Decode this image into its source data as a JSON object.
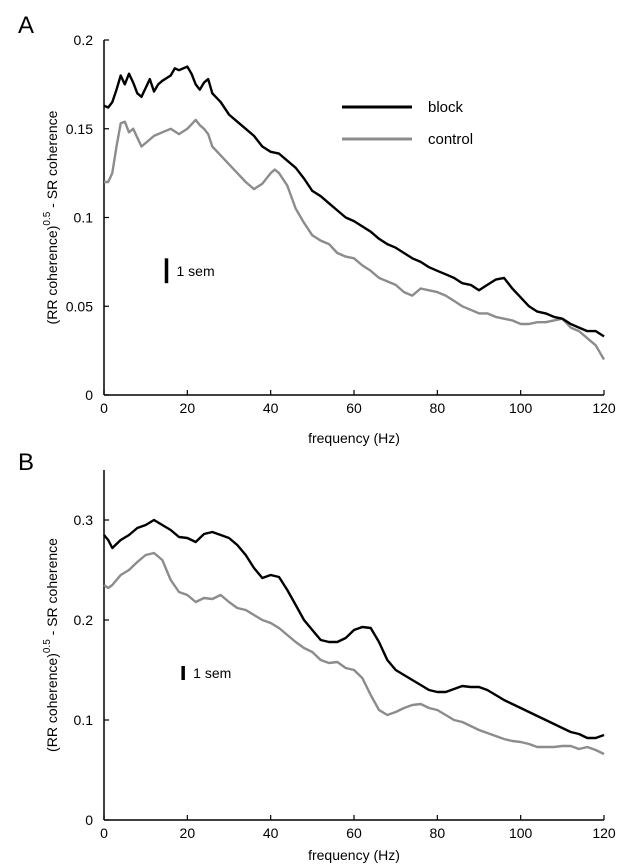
{
  "chart_data": [
    {
      "panel_label": "A",
      "type": "line",
      "xlabel": "frequency (Hz)",
      "ylabel_main": "(RR coherence)",
      "ylabel_sup": "0.5",
      "ylabel_tail": " - SR coherence",
      "xlim": [
        0,
        120
      ],
      "ylim": [
        0,
        0.2
      ],
      "x_ticks": [
        0,
        20,
        40,
        60,
        80,
        100,
        120
      ],
      "y_ticks": [
        0,
        0.05,
        0.1,
        0.15,
        0.2
      ],
      "y_tick_labels": [
        "0",
        "0.05",
        "0.1",
        "0.15",
        "0.2"
      ],
      "legend_position": "top-right",
      "scale_bar": {
        "label": "1 sem",
        "x": 15,
        "y_low": 0.063,
        "y_high": 0.077
      },
      "series": [
        {
          "name": "block",
          "color": "#000000",
          "points": [
            [
              0,
              0.163
            ],
            [
              1,
              0.162
            ],
            [
              2,
              0.165
            ],
            [
              3,
              0.172
            ],
            [
              4,
              0.18
            ],
            [
              5,
              0.175
            ],
            [
              6,
              0.181
            ],
            [
              7,
              0.176
            ],
            [
              8,
              0.17
            ],
            [
              9,
              0.168
            ],
            [
              10,
              0.173
            ],
            [
              11,
              0.178
            ],
            [
              12,
              0.171
            ],
            [
              13,
              0.175
            ],
            [
              14,
              0.177
            ],
            [
              16,
              0.18
            ],
            [
              17,
              0.184
            ],
            [
              18,
              0.183
            ],
            [
              20,
              0.185
            ],
            [
              21,
              0.181
            ],
            [
              22,
              0.175
            ],
            [
              23,
              0.172
            ],
            [
              24,
              0.176
            ],
            [
              25,
              0.178
            ],
            [
              26,
              0.17
            ],
            [
              28,
              0.165
            ],
            [
              30,
              0.158
            ],
            [
              32,
              0.154
            ],
            [
              34,
              0.15
            ],
            [
              36,
              0.146
            ],
            [
              38,
              0.14
            ],
            [
              40,
              0.137
            ],
            [
              42,
              0.136
            ],
            [
              44,
              0.132
            ],
            [
              46,
              0.128
            ],
            [
              48,
              0.122
            ],
            [
              50,
              0.115
            ],
            [
              52,
              0.112
            ],
            [
              54,
              0.108
            ],
            [
              56,
              0.104
            ],
            [
              58,
              0.1
            ],
            [
              60,
              0.098
            ],
            [
              62,
              0.095
            ],
            [
              64,
              0.092
            ],
            [
              66,
              0.088
            ],
            [
              68,
              0.085
            ],
            [
              70,
              0.083
            ],
            [
              72,
              0.08
            ],
            [
              74,
              0.077
            ],
            [
              76,
              0.075
            ],
            [
              78,
              0.072
            ],
            [
              80,
              0.07
            ],
            [
              82,
              0.068
            ],
            [
              84,
              0.066
            ],
            [
              86,
              0.063
            ],
            [
              88,
              0.062
            ],
            [
              90,
              0.059
            ],
            [
              92,
              0.062
            ],
            [
              94,
              0.065
            ],
            [
              96,
              0.066
            ],
            [
              98,
              0.06
            ],
            [
              100,
              0.055
            ],
            [
              102,
              0.05
            ],
            [
              104,
              0.047
            ],
            [
              106,
              0.046
            ],
            [
              108,
              0.044
            ],
            [
              110,
              0.043
            ],
            [
              112,
              0.04
            ],
            [
              114,
              0.038
            ],
            [
              116,
              0.036
            ],
            [
              118,
              0.036
            ],
            [
              120,
              0.033
            ]
          ]
        },
        {
          "name": "control",
          "color": "#8c8c8c",
          "points": [
            [
              0,
              0.12
            ],
            [
              1,
              0.12
            ],
            [
              2,
              0.125
            ],
            [
              3,
              0.14
            ],
            [
              4,
              0.153
            ],
            [
              5,
              0.154
            ],
            [
              6,
              0.148
            ],
            [
              7,
              0.15
            ],
            [
              8,
              0.145
            ],
            [
              9,
              0.14
            ],
            [
              10,
              0.142
            ],
            [
              12,
              0.146
            ],
            [
              14,
              0.148
            ],
            [
              16,
              0.15
            ],
            [
              18,
              0.147
            ],
            [
              20,
              0.15
            ],
            [
              22,
              0.155
            ],
            [
              23,
              0.152
            ],
            [
              24,
              0.15
            ],
            [
              25,
              0.147
            ],
            [
              26,
              0.14
            ],
            [
              28,
              0.135
            ],
            [
              30,
              0.13
            ],
            [
              32,
              0.125
            ],
            [
              34,
              0.12
            ],
            [
              36,
              0.116
            ],
            [
              38,
              0.119
            ],
            [
              40,
              0.125
            ],
            [
              41,
              0.127
            ],
            [
              42,
              0.125
            ],
            [
              44,
              0.118
            ],
            [
              46,
              0.105
            ],
            [
              48,
              0.097
            ],
            [
              50,
              0.09
            ],
            [
              52,
              0.087
            ],
            [
              54,
              0.085
            ],
            [
              56,
              0.08
            ],
            [
              58,
              0.078
            ],
            [
              60,
              0.077
            ],
            [
              62,
              0.073
            ],
            [
              64,
              0.07
            ],
            [
              66,
              0.066
            ],
            [
              68,
              0.064
            ],
            [
              70,
              0.062
            ],
            [
              72,
              0.058
            ],
            [
              74,
              0.056
            ],
            [
              76,
              0.06
            ],
            [
              78,
              0.059
            ],
            [
              80,
              0.058
            ],
            [
              82,
              0.056
            ],
            [
              84,
              0.053
            ],
            [
              86,
              0.05
            ],
            [
              88,
              0.048
            ],
            [
              90,
              0.046
            ],
            [
              92,
              0.046
            ],
            [
              94,
              0.044
            ],
            [
              96,
              0.043
            ],
            [
              98,
              0.042
            ],
            [
              100,
              0.04
            ],
            [
              102,
              0.04
            ],
            [
              104,
              0.041
            ],
            [
              106,
              0.041
            ],
            [
              108,
              0.042
            ],
            [
              110,
              0.043
            ],
            [
              112,
              0.038
            ],
            [
              114,
              0.036
            ],
            [
              116,
              0.032
            ],
            [
              118,
              0.028
            ],
            [
              120,
              0.02
            ]
          ]
        }
      ]
    },
    {
      "panel_label": "B",
      "type": "line",
      "xlabel": "frequency (Hz)",
      "ylabel_main": "(RR coherence)",
      "ylabel_sup": "0.5",
      "ylabel_tail": " - SR coherence",
      "xlim": [
        0,
        120
      ],
      "ylim": [
        0,
        0.35
      ],
      "x_ticks": [
        0,
        20,
        40,
        60,
        80,
        100,
        120
      ],
      "y_ticks": [
        0,
        0.1,
        0.2,
        0.3
      ],
      "y_tick_labels": [
        "0",
        "0.1",
        "0.2",
        "0.3"
      ],
      "scale_bar": {
        "label": "1 sem",
        "x": 19,
        "y_low": 0.14,
        "y_high": 0.154
      },
      "series": [
        {
          "name": "block",
          "color": "#000000",
          "points": [
            [
              0,
              0.285
            ],
            [
              1,
              0.28
            ],
            [
              2,
              0.272
            ],
            [
              4,
              0.28
            ],
            [
              6,
              0.285
            ],
            [
              8,
              0.292
            ],
            [
              10,
              0.295
            ],
            [
              12,
              0.3
            ],
            [
              14,
              0.295
            ],
            [
              16,
              0.29
            ],
            [
              18,
              0.283
            ],
            [
              20,
              0.282
            ],
            [
              22,
              0.278
            ],
            [
              24,
              0.286
            ],
            [
              26,
              0.288
            ],
            [
              28,
              0.285
            ],
            [
              30,
              0.282
            ],
            [
              32,
              0.275
            ],
            [
              34,
              0.265
            ],
            [
              36,
              0.252
            ],
            [
              38,
              0.242
            ],
            [
              40,
              0.245
            ],
            [
              42,
              0.243
            ],
            [
              44,
              0.23
            ],
            [
              46,
              0.215
            ],
            [
              48,
              0.2
            ],
            [
              50,
              0.19
            ],
            [
              52,
              0.18
            ],
            [
              54,
              0.178
            ],
            [
              56,
              0.178
            ],
            [
              58,
              0.182
            ],
            [
              60,
              0.19
            ],
            [
              62,
              0.193
            ],
            [
              64,
              0.192
            ],
            [
              66,
              0.178
            ],
            [
              68,
              0.16
            ],
            [
              70,
              0.15
            ],
            [
              72,
              0.145
            ],
            [
              74,
              0.14
            ],
            [
              76,
              0.135
            ],
            [
              78,
              0.13
            ],
            [
              80,
              0.128
            ],
            [
              82,
              0.128
            ],
            [
              84,
              0.131
            ],
            [
              86,
              0.134
            ],
            [
              88,
              0.133
            ],
            [
              90,
              0.133
            ],
            [
              92,
              0.13
            ],
            [
              94,
              0.125
            ],
            [
              96,
              0.12
            ],
            [
              98,
              0.116
            ],
            [
              100,
              0.112
            ],
            [
              102,
              0.108
            ],
            [
              104,
              0.104
            ],
            [
              106,
              0.1
            ],
            [
              108,
              0.096
            ],
            [
              110,
              0.092
            ],
            [
              112,
              0.088
            ],
            [
              114,
              0.086
            ],
            [
              116,
              0.082
            ],
            [
              118,
              0.082
            ],
            [
              120,
              0.085
            ]
          ]
        },
        {
          "name": "control",
          "color": "#8c8c8c",
          "points": [
            [
              0,
              0.235
            ],
            [
              1,
              0.232
            ],
            [
              2,
              0.235
            ],
            [
              4,
              0.245
            ],
            [
              6,
              0.25
            ],
            [
              8,
              0.258
            ],
            [
              10,
              0.265
            ],
            [
              12,
              0.267
            ],
            [
              14,
              0.26
            ],
            [
              16,
              0.24
            ],
            [
              18,
              0.228
            ],
            [
              20,
              0.225
            ],
            [
              22,
              0.218
            ],
            [
              24,
              0.222
            ],
            [
              26,
              0.221
            ],
            [
              28,
              0.225
            ],
            [
              30,
              0.218
            ],
            [
              32,
              0.212
            ],
            [
              34,
              0.21
            ],
            [
              36,
              0.205
            ],
            [
              38,
              0.2
            ],
            [
              40,
              0.197
            ],
            [
              42,
              0.192
            ],
            [
              44,
              0.185
            ],
            [
              46,
              0.178
            ],
            [
              48,
              0.172
            ],
            [
              50,
              0.168
            ],
            [
              52,
              0.16
            ],
            [
              54,
              0.157
            ],
            [
              56,
              0.158
            ],
            [
              58,
              0.152
            ],
            [
              60,
              0.15
            ],
            [
              62,
              0.142
            ],
            [
              64,
              0.125
            ],
            [
              66,
              0.11
            ],
            [
              68,
              0.105
            ],
            [
              70,
              0.108
            ],
            [
              72,
              0.112
            ],
            [
              74,
              0.115
            ],
            [
              76,
              0.116
            ],
            [
              78,
              0.112
            ],
            [
              80,
              0.11
            ],
            [
              82,
              0.105
            ],
            [
              84,
              0.1
            ],
            [
              86,
              0.098
            ],
            [
              88,
              0.094
            ],
            [
              90,
              0.09
            ],
            [
              92,
              0.087
            ],
            [
              94,
              0.084
            ],
            [
              96,
              0.081
            ],
            [
              98,
              0.079
            ],
            [
              100,
              0.078
            ],
            [
              102,
              0.076
            ],
            [
              104,
              0.073
            ],
            [
              106,
              0.073
            ],
            [
              108,
              0.073
            ],
            [
              110,
              0.074
            ],
            [
              112,
              0.074
            ],
            [
              114,
              0.071
            ],
            [
              116,
              0.073
            ],
            [
              118,
              0.07
            ],
            [
              120,
              0.066
            ]
          ]
        }
      ]
    }
  ]
}
